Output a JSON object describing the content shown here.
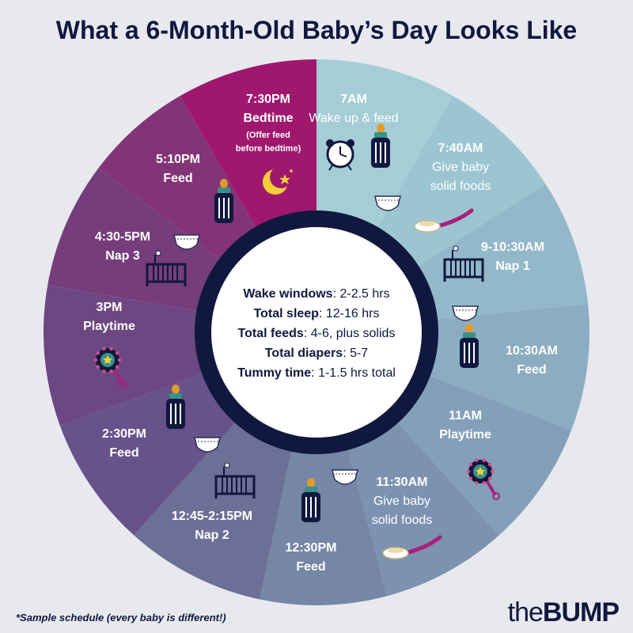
{
  "title": "What a 6-Month-Old Baby’s Day Looks Like",
  "colors": {
    "background": "#e8e9ef",
    "navy": "#10183f",
    "bedtime": "#a0186e",
    "icon_pink": "#a8207a"
  },
  "segments": [
    {
      "time": "7AM",
      "label": [
        "Wake up & feed"
      ],
      "color": "#a5cdd6",
      "icons": [
        "alarm-clock-icon",
        "bottle-icon"
      ]
    },
    {
      "time": "7:40AM",
      "label": [
        "Give baby",
        "solid foods"
      ],
      "color": "#9cc5d1",
      "icons": [
        "diaper-icon",
        "spoon-icon"
      ]
    },
    {
      "time": "9-10:30AM",
      "label": [
        "Nap 1"
      ],
      "color": "#93b8c9",
      "icons": [
        "crib-icon",
        "diaper-icon"
      ]
    },
    {
      "time": "10:30AM",
      "label": [
        "Feed"
      ],
      "color": "#8cacc2",
      "icons": [
        "bottle-icon"
      ]
    },
    {
      "time": "11AM",
      "label": [
        "Playtime"
      ],
      "color": "#849fba",
      "icons": [
        "rattle-icon"
      ]
    },
    {
      "time": "11:30AM",
      "label": [
        "Give baby",
        "solid foods"
      ],
      "color": "#7c92b0",
      "icons": [
        "diaper-icon",
        "spoon-icon"
      ]
    },
    {
      "time": "12:30PM",
      "label": [
        "Feed"
      ],
      "color": "#7586a6",
      "icons": [
        "bottle-icon"
      ]
    },
    {
      "time": "12:45-2:15PM",
      "label": [
        "Nap 2"
      ],
      "color": "#6c6f96",
      "icons": [
        "crib-icon"
      ]
    },
    {
      "time": "2:30PM",
      "label": [
        "Feed"
      ],
      "color": "#67528a",
      "icons": [
        "bottle-icon",
        "diaper-icon"
      ]
    },
    {
      "time": "3PM",
      "label": [
        "Playtime"
      ],
      "color": "#6d4782",
      "icons": [
        "rattle-icon"
      ]
    },
    {
      "time": "4:30-5PM",
      "label": [
        "Nap 3"
      ],
      "color": "#763d7c",
      "icons": [
        "diaper-icon",
        "crib-icon"
      ]
    },
    {
      "time": "5:10PM",
      "label": [
        "Feed"
      ],
      "color": "#833476",
      "icons": [
        "bottle-icon"
      ]
    },
    {
      "time": "7:30PM",
      "label": [
        "Bedtime"
      ],
      "sublabel": [
        "(Offer feed",
        "before bedtime)"
      ],
      "color": "#a0186e",
      "icons": [
        "moon-stars-icon"
      ]
    }
  ],
  "summary": [
    {
      "label": "Wake windows",
      "value": ": 2-2.5 hrs"
    },
    {
      "label": "Total sleep",
      "value": ": 12-16 hrs"
    },
    {
      "label": "Total feeds",
      "value": ": 4-6, plus solids"
    },
    {
      "label": "Total diapers",
      "value": ": 5-7"
    },
    {
      "label": "Tummy time",
      "value": ": 1-1.5 hrs total"
    }
  ],
  "footnote": "*Sample schedule (every baby is different!)",
  "logo": {
    "prefix": "the",
    "brand": "BUMP"
  }
}
